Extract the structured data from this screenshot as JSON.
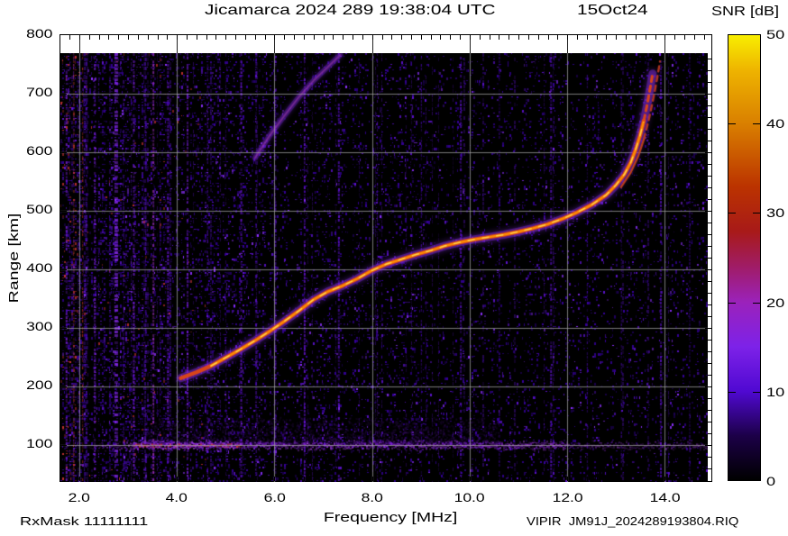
{
  "header": {
    "title_main": "Jicamarca 2024 289 19:38:04 UTC",
    "title_date": "15Oct24"
  },
  "axes": {
    "x_title": "Frequency [MHz]",
    "y_title": "Range [km]",
    "x_ticks": [
      {
        "v": 2,
        "label": "2.0"
      },
      {
        "v": 4,
        "label": "4.0"
      },
      {
        "v": 6,
        "label": "6.0"
      },
      {
        "v": 8,
        "label": "8.0"
      },
      {
        "v": 10,
        "label": "10.0"
      },
      {
        "v": 12,
        "label": "12.0"
      },
      {
        "v": 14,
        "label": "14.0"
      }
    ],
    "y_ticks": [
      {
        "v": 800,
        "label": "800"
      },
      {
        "v": 700,
        "label": "700"
      },
      {
        "v": 600,
        "label": "600"
      },
      {
        "v": 500,
        "label": "500"
      },
      {
        "v": 400,
        "label": "400"
      },
      {
        "v": 300,
        "label": "300"
      },
      {
        "v": 200,
        "label": "200"
      },
      {
        "v": 100,
        "label": "100"
      }
    ]
  },
  "colorbar": {
    "title": "SNR [dB]",
    "min": 0,
    "max": 50,
    "ticks": [
      {
        "v": 50,
        "label": "50"
      },
      {
        "v": 40,
        "label": "40"
      },
      {
        "v": 30,
        "label": "30"
      },
      {
        "v": 20,
        "label": "20"
      },
      {
        "v": 10,
        "label": "10"
      },
      {
        "v": 0,
        "label": "0"
      }
    ],
    "stops": [
      {
        "v": 0,
        "c": "#000000"
      },
      {
        "v": 5,
        "c": "#1c0048"
      },
      {
        "v": 10,
        "c": "#5009d2"
      },
      {
        "v": 15,
        "c": "#7d22e8"
      },
      {
        "v": 20,
        "c": "#9b22bb"
      },
      {
        "v": 24,
        "c": "#a01c66"
      },
      {
        "v": 28,
        "c": "#a81a18"
      },
      {
        "v": 33,
        "c": "#bb3300"
      },
      {
        "v": 40,
        "c": "#d97f00"
      },
      {
        "v": 46,
        "c": "#eeb300"
      },
      {
        "v": 50,
        "c": "#f8ee00"
      }
    ]
  },
  "footer": {
    "rx_mask": "RxMask 11111111",
    "filename": "VIPIR  JM91J_2024289193804.RIQ"
  },
  "chart_data": {
    "type": "heatmap",
    "title": "Jicamarca 2024 289 19:38:04 UTC  15Oct24",
    "xlabel": "Frequency [MHz]",
    "ylabel": "Range [km]",
    "colorbar_label": "SNR [dB]",
    "x_range": [
      1.613,
      14.879
    ],
    "y_range": [
      40,
      800
    ],
    "snr_range_db": [
      0,
      50
    ],
    "grid": {
      "x_mhz": [
        2,
        4,
        6,
        8,
        10,
        12,
        14
      ],
      "y_km": [
        100,
        200,
        300,
        400,
        500,
        600,
        700
      ]
    },
    "no_data_above_km": 769,
    "description": "Vertical-incidence ionogram: F-region echo trace rising from ~215 km at 4.1 MHz to an asymptote near 13.8 MHz, O/X mode split above 500 km, faint second-hop trace 590-770 km, E-region echoes near 100 km, vertical RFI streaks over violet noise.",
    "main_trace": [
      [
        4.08,
        214
      ],
      [
        4.4,
        224
      ],
      [
        4.7,
        235
      ],
      [
        5.0,
        249
      ],
      [
        5.3,
        263
      ],
      [
        5.6,
        278
      ],
      [
        5.9,
        294
      ],
      [
        6.2,
        311
      ],
      [
        6.5,
        329
      ],
      [
        6.8,
        348
      ],
      [
        7.1,
        362
      ],
      [
        7.4,
        372
      ],
      [
        7.7,
        384
      ],
      [
        8.0,
        398
      ],
      [
        8.3,
        409
      ],
      [
        8.6,
        417
      ],
      [
        8.9,
        425
      ],
      [
        9.2,
        432
      ],
      [
        9.5,
        440
      ],
      [
        9.8,
        446
      ],
      [
        10.1,
        451
      ],
      [
        10.4,
        455
      ],
      [
        10.7,
        459
      ],
      [
        11.0,
        464
      ],
      [
        11.3,
        470
      ],
      [
        11.6,
        477
      ],
      [
        11.9,
        486
      ],
      [
        12.2,
        497
      ],
      [
        12.5,
        510
      ],
      [
        12.8,
        527
      ],
      [
        13.0,
        544
      ],
      [
        13.17,
        562
      ],
      [
        13.3,
        582
      ],
      [
        13.4,
        604
      ],
      [
        13.49,
        628
      ],
      [
        13.57,
        654
      ],
      [
        13.64,
        682
      ],
      [
        13.7,
        710
      ],
      [
        13.75,
        734
      ]
    ],
    "ox_trace": [
      [
        13.1,
        540
      ],
      [
        13.3,
        565
      ],
      [
        13.45,
        592
      ],
      [
        13.57,
        622
      ],
      [
        13.67,
        655
      ],
      [
        13.76,
        690
      ],
      [
        13.84,
        725
      ],
      [
        13.9,
        755
      ]
    ],
    "second_hop": [
      [
        5.6,
        590
      ],
      [
        5.9,
        628
      ],
      [
        6.2,
        662
      ],
      [
        6.5,
        694
      ],
      [
        6.8,
        722
      ],
      [
        7.1,
        746
      ],
      [
        7.35,
        766
      ]
    ],
    "e_layer": {
      "range_km": 100,
      "f_min": 2.2,
      "f_max": 14.85,
      "strong_f": [
        3.1,
        5.3
      ],
      "thickness_km": 14
    },
    "rfi_streaks": [
      {
        "f": 1.72,
        "w": 2,
        "c": "#7d1fe0"
      },
      {
        "f": 1.88,
        "w": 1,
        "c": "#c04028"
      },
      {
        "f": 2.06,
        "w": 1,
        "c": "#cc3322"
      },
      {
        "f": 2.3,
        "w": 2,
        "c": "#7d1fe0"
      },
      {
        "f": 2.72,
        "w": 4,
        "c": "#8a2af0"
      },
      {
        "f": 3.1,
        "w": 2,
        "c": "#7d1fe0"
      },
      {
        "f": 3.5,
        "w": 2,
        "c": "#aa33cc"
      },
      {
        "f": 3.8,
        "w": 2,
        "c": "#6a14d8"
      },
      {
        "f": 4.2,
        "w": 2,
        "c": "#7d1fe0"
      },
      {
        "f": 4.62,
        "w": 1,
        "c": "#6a14d8"
      },
      {
        "f": 5.3,
        "w": 2,
        "c": "#6a14d8"
      },
      {
        "f": 6.0,
        "w": 2,
        "c": "#5a10c8"
      },
      {
        "f": 6.6,
        "w": 2,
        "c": "#6a14d8"
      },
      {
        "f": 7.3,
        "w": 2,
        "c": "#5a10c8"
      },
      {
        "f": 8.1,
        "w": 1,
        "c": "#5a10c8"
      },
      {
        "f": 9.0,
        "w": 1,
        "c": "#4c0ab8"
      },
      {
        "f": 9.8,
        "w": 2,
        "c": "#5a10c8"
      },
      {
        "f": 10.6,
        "w": 1,
        "c": "#4c0ab8"
      },
      {
        "f": 11.65,
        "w": 2,
        "c": "#5a10c8"
      },
      {
        "f": 12.4,
        "w": 1,
        "c": "#4c0ab8"
      },
      {
        "f": 13.1,
        "w": 1,
        "c": "#4c0ab8"
      },
      {
        "f": 13.9,
        "w": 2,
        "c": "#5a10c8"
      },
      {
        "f": 14.5,
        "w": 1,
        "c": "#4c0ab8"
      }
    ],
    "noise_colors": {
      "bg": "#000000",
      "dim": "#35009c",
      "mid": "#5c12ce",
      "bright": "#8c30ff",
      "red": "#c03030"
    },
    "trace_colors": {
      "halo": "#8a30e8",
      "mid": "#e04812",
      "core": "#ff9100",
      "hot": "#ffd34d"
    },
    "grid_color": "rgba(160,160,160,0.75)"
  }
}
